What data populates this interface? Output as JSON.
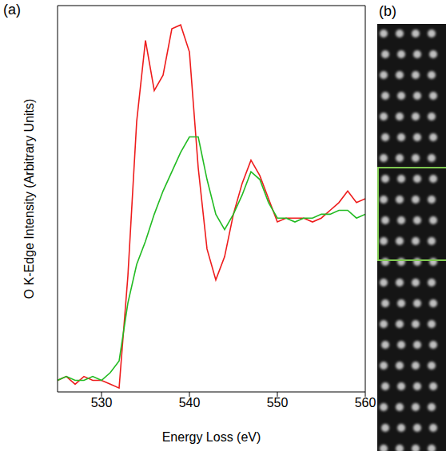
{
  "chart_data": {
    "type": "line",
    "x_label": "Energy Loss (eV)",
    "y_label": "O K-Edge Intensity (Arbitrary Units)",
    "x": [
      525,
      526,
      527,
      528,
      529,
      530,
      531,
      532,
      533,
      534,
      535,
      536,
      537,
      538,
      539,
      540,
      541,
      542,
      543,
      544,
      545,
      546,
      547,
      548,
      549,
      550,
      551,
      552,
      553,
      554,
      555,
      556,
      557,
      558,
      559,
      560
    ],
    "series": [
      {
        "color": "#ee1c1c",
        "values": [
          3,
          4,
          2,
          4,
          3,
          3,
          2,
          1,
          30,
          70,
          91,
          78,
          82,
          94,
          95,
          88,
          58,
          37,
          29,
          35,
          46,
          54,
          60,
          56,
          50,
          44,
          45,
          45,
          45,
          44,
          45,
          47,
          49,
          52,
          49,
          50
        ]
      },
      {
        "color": "#22bb22",
        "values": [
          3,
          4,
          3,
          3,
          4,
          3,
          5,
          8,
          23,
          33,
          39,
          46,
          52,
          57,
          62,
          66,
          66,
          55,
          46,
          42,
          46,
          51,
          57,
          55,
          49,
          45,
          45,
          44,
          45,
          45,
          46,
          46,
          47,
          47,
          45,
          46
        ]
      }
    ],
    "xlim": [
      525,
      560
    ],
    "xticks": [
      530,
      540,
      550,
      560
    ],
    "ylim": [
      0,
      100
    ],
    "yticks": [],
    "tick_labels": "x",
    "grid": false
  },
  "panel_labels": [
    "(a)",
    "(b)"
  ]
}
